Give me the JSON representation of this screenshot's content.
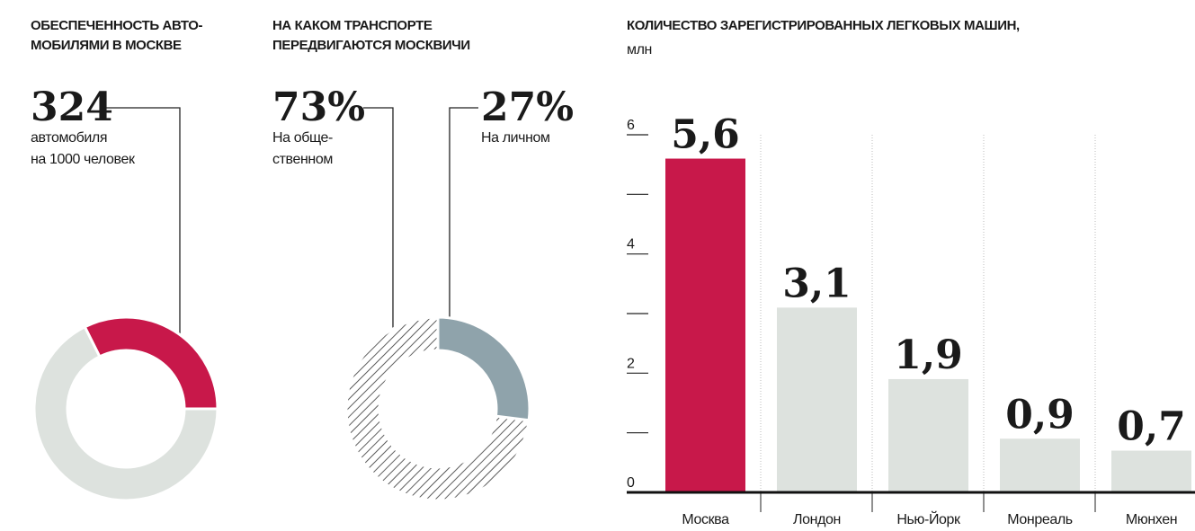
{
  "chart_data": [
    {
      "type": "pie",
      "title": [
        "ОБЕСПЕЧЕННОСТЬ АВТО-",
        "МОБИЛЯМИ В МОСКВЕ"
      ],
      "values": [
        324,
        676
      ],
      "caption": [
        "автомобиля",
        "на 1000 человек"
      ],
      "colors": [
        "#c8184a",
        "#dde2de"
      ],
      "hatched": [
        false,
        false
      ],
      "donut": true
    },
    {
      "type": "pie",
      "title": [
        "НА КАКОМ ТРАНСПОРТЕ",
        "ПЕРЕДВИГАЮТСЯ МОСКВИЧИ"
      ],
      "values": [
        73,
        27
      ],
      "value_labels": [
        "73%",
        "27%"
      ],
      "labels": [
        [
          "На обще-",
          "ственном"
        ],
        [
          "На личном"
        ]
      ],
      "colors": [
        "#333333",
        "#8fa3ab"
      ],
      "hatched": [
        true,
        false
      ],
      "donut": true
    },
    {
      "type": "bar",
      "title": [
        "КОЛИЧЕСТВО ЗАРЕГИСТРИРОВАННЫХ ЛЕГКОВЫХ МАШИН,"
      ],
      "subtitle": "млн",
      "categories": [
        "Москва",
        "Лондон",
        "Нью-Йорк",
        "Монреаль",
        "Мюнхен"
      ],
      "values": [
        5.6,
        3.1,
        1.9,
        0.9,
        0.7
      ],
      "value_labels": [
        "5,6",
        "3,1",
        "1,9",
        "0,9",
        "0,7"
      ],
      "colors": [
        "#c8184a",
        "#dde2de",
        "#dde2de",
        "#dde2de",
        "#dde2de"
      ],
      "ylim": [
        0,
        6
      ],
      "yticks": [
        0,
        2,
        4,
        6
      ],
      "minor_yticks": [
        1,
        3,
        5
      ]
    }
  ]
}
